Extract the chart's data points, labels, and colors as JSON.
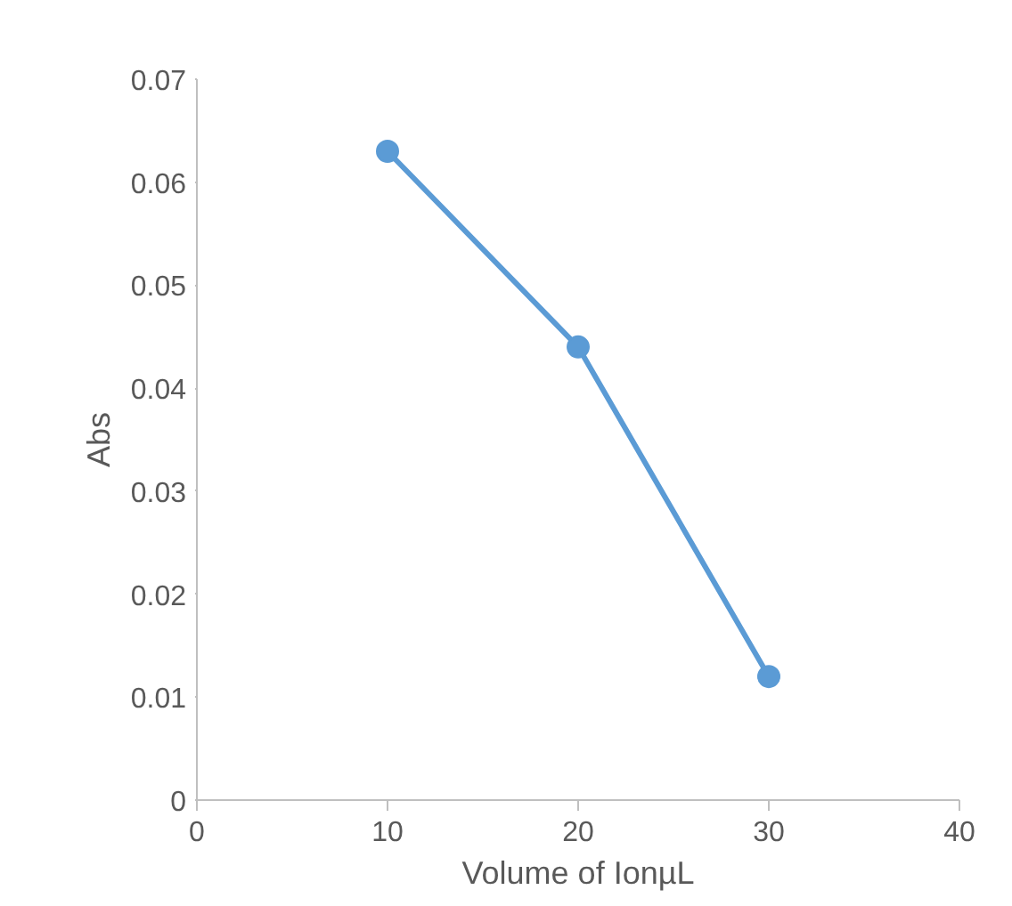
{
  "chart_data": {
    "type": "line",
    "xlabel": "Volume of IonµL",
    "ylabel": "Abs",
    "x": [
      10,
      20,
      30
    ],
    "series": [
      {
        "color": "#5b9bd5",
        "values": [
          0.063,
          0.044,
          0.012
        ]
      }
    ],
    "xlim": [
      0,
      40
    ],
    "xticks": [
      0,
      10,
      20,
      30,
      40
    ],
    "ylim": [
      0,
      0.07
    ],
    "yticks": [
      0,
      0.01,
      0.02,
      0.03,
      0.04,
      0.05,
      0.06,
      0.07
    ],
    "grid": false,
    "marker": "circle",
    "line_style": "solid"
  }
}
